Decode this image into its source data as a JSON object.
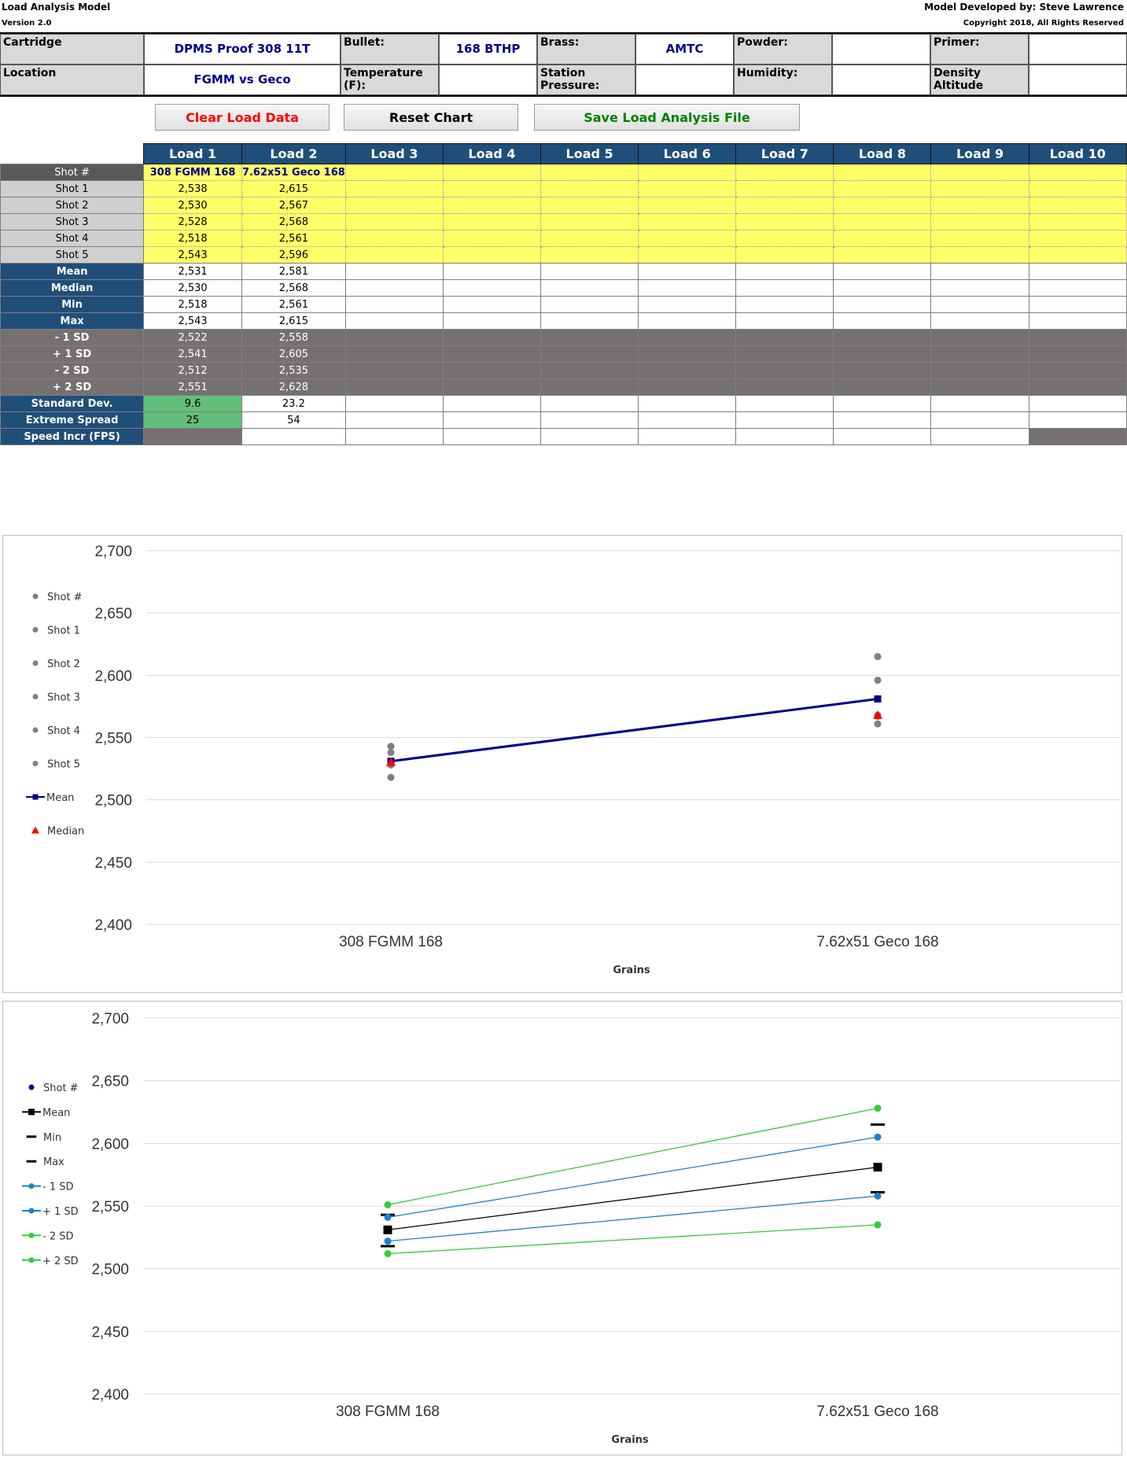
{
  "header": {
    "title": "Load Analysis Model",
    "version": "Version 2.0",
    "developer": "Model Developed by: Steve Lawrence",
    "copyright": "Copyright 2018, All Rights Reserved"
  },
  "info": {
    "cartridge_label": "Cartridge",
    "cartridge_value": "DPMS Proof 308 11T",
    "bullet_label": "Bullet:",
    "bullet_value": "168 BTHP",
    "brass_label": "Brass:",
    "brass_value": "AMTC",
    "powder_label": "Powder:",
    "powder_value": "",
    "primer_label": "Primer:",
    "primer_value": "",
    "location_label": "Location",
    "location_value": "FGMM vs Geco",
    "temperature_label": "Temperature (F):",
    "temperature_value": "",
    "station_label": "Station Pressure:",
    "station_value": "",
    "humidity_label": "Humidity:",
    "humidity_value": "",
    "density_label": "Density Altitude",
    "density_value": ""
  },
  "buttons": {
    "clear": "Clear Load Data",
    "reset": "Reset Chart",
    "save": "Save Load Analysis File",
    "clear_color": "#ff0000",
    "reset_color": "#000000",
    "save_color": "#008000"
  },
  "table": {
    "loads": [
      "Load 1",
      "Load 2",
      "Load 3",
      "Load 4",
      "Load 5",
      "Load 6",
      "Load 7",
      "Load 8",
      "Load 9",
      "Load 10"
    ],
    "shot_hdr_label": "Shot #",
    "load_names": [
      "308 FGMM 168",
      "7.62x51 Geco 168",
      "",
      "",
      "",
      "",
      "",
      "",
      "",
      ""
    ],
    "shots": [
      {
        "label": "Shot 1",
        "values": [
          "2,538",
          "2,615",
          "",
          "",
          "",
          "",
          "",
          "",
          "",
          ""
        ]
      },
      {
        "label": "Shot 2",
        "values": [
          "2,530",
          "2,567",
          "",
          "",
          "",
          "",
          "",
          "",
          "",
          ""
        ]
      },
      {
        "label": "Shot 3",
        "values": [
          "2,528",
          "2,568",
          "",
          "",
          "",
          "",
          "",
          "",
          "",
          ""
        ]
      },
      {
        "label": "Shot 4",
        "values": [
          "2,518",
          "2,561",
          "",
          "",
          "",
          "",
          "",
          "",
          "",
          ""
        ]
      },
      {
        "label": "Shot 5",
        "values": [
          "2,543",
          "2,596",
          "",
          "",
          "",
          "",
          "",
          "",
          "",
          ""
        ]
      }
    ],
    "stats": [
      {
        "label": "Mean",
        "values": [
          "2,531",
          "2,581",
          "",
          "",
          "",
          "",
          "",
          "",
          "",
          ""
        ]
      },
      {
        "label": "Median",
        "values": [
          "2,530",
          "2,568",
          "",
          "",
          "",
          "",
          "",
          "",
          "",
          ""
        ]
      },
      {
        "label": "Min",
        "values": [
          "2,518",
          "2,561",
          "",
          "",
          "",
          "",
          "",
          "",
          "",
          ""
        ]
      },
      {
        "label": "Max",
        "values": [
          "2,543",
          "2,615",
          "",
          "",
          "",
          "",
          "",
          "",
          "",
          ""
        ]
      }
    ],
    "sd_rows": [
      {
        "label": "- 1 SD",
        "values": [
          "2,522",
          "2,558",
          "",
          "",
          "",
          "",
          "",
          "",
          "",
          ""
        ]
      },
      {
        "label": "+ 1 SD",
        "values": [
          "2,541",
          "2,605",
          "",
          "",
          "",
          "",
          "",
          "",
          "",
          ""
        ]
      },
      {
        "label": "- 2 SD",
        "values": [
          "2,512",
          "2,535",
          "",
          "",
          "",
          "",
          "",
          "",
          "",
          ""
        ]
      },
      {
        "label": "+ 2 SD",
        "values": [
          "2,551",
          "2,628",
          "",
          "",
          "",
          "",
          "",
          "",
          "",
          ""
        ]
      }
    ],
    "std_dev": {
      "label": "Standard Dev.",
      "values": [
        "9.6",
        "23.2",
        "",
        "",
        "",
        "",
        "",
        "",
        "",
        ""
      ]
    },
    "extreme_spread": {
      "label": "Extreme Spread",
      "values": [
        "25",
        "54",
        "",
        "",
        "",
        "",
        "",
        "",
        "",
        ""
      ]
    },
    "speed_incr": {
      "label": "Speed Incr (FPS)",
      "values": [
        "",
        "",
        "",
        "",
        "",
        "",
        "",
        "",
        "",
        ""
      ]
    }
  },
  "chart_data": [
    {
      "type": "scatter",
      "categories": [
        "308 FGMM 168",
        "7.62x51 Geco 168"
      ],
      "xlabel": "Grains",
      "ylim": [
        2400,
        2700
      ],
      "yticks": [
        "2,400",
        "2,450",
        "2,500",
        "2,550",
        "2,600",
        "2,650",
        "2,700"
      ],
      "legend_position": "left",
      "series": [
        {
          "name": "Shot #",
          "values": [
            null,
            null
          ],
          "color": "#808080",
          "marker": "circle"
        },
        {
          "name": "Shot 1",
          "values": [
            2538,
            2615
          ],
          "color": "#808080",
          "marker": "circle"
        },
        {
          "name": "Shot 2",
          "values": [
            2530,
            2567
          ],
          "color": "#808080",
          "marker": "circle"
        },
        {
          "name": "Shot 3",
          "values": [
            2528,
            2568
          ],
          "color": "#808080",
          "marker": "circle"
        },
        {
          "name": "Shot 4",
          "values": [
            2518,
            2561
          ],
          "color": "#808080",
          "marker": "circle"
        },
        {
          "name": "Shot 5",
          "values": [
            2543,
            2596
          ],
          "color": "#808080",
          "marker": "circle"
        },
        {
          "name": "Mean",
          "values": [
            2531,
            2581
          ],
          "color": "#00008b",
          "marker": "square",
          "line": true
        },
        {
          "name": "Median",
          "values": [
            2530,
            2568
          ],
          "color": "#ff0000",
          "marker": "triangle"
        }
      ]
    },
    {
      "type": "line",
      "categories": [
        "308 FGMM 168",
        "7.62x51 Geco 168"
      ],
      "xlabel": "Grains",
      "ylim": [
        2400,
        2700
      ],
      "yticks": [
        "2,400",
        "2,450",
        "2,500",
        "2,550",
        "2,600",
        "2,650",
        "2,700"
      ],
      "legend_position": "left",
      "series": [
        {
          "name": "Shot #",
          "values": [
            null,
            null
          ],
          "color": "#00008b",
          "marker": "circle"
        },
        {
          "name": "Mean",
          "values": [
            2531,
            2581
          ],
          "color": "#000000",
          "marker": "square",
          "line": true
        },
        {
          "name": "Min",
          "values": [
            2518,
            2561
          ],
          "color": "#000000",
          "marker": "dash"
        },
        {
          "name": "Max",
          "values": [
            2543,
            2615
          ],
          "color": "#000000",
          "marker": "dash"
        },
        {
          "name": "- 1 SD",
          "values": [
            2522,
            2558
          ],
          "color": "#1f7ecf",
          "marker": "circle",
          "line": true
        },
        {
          "name": "+ 1 SD",
          "values": [
            2541,
            2605
          ],
          "color": "#1f7ecf",
          "marker": "circle",
          "line": true
        },
        {
          "name": "- 2 SD",
          "values": [
            2512,
            2535
          ],
          "color": "#33cc33",
          "marker": "circle",
          "line": true
        },
        {
          "name": "+ 2 SD",
          "values": [
            2551,
            2628
          ],
          "color": "#33cc33",
          "marker": "circle",
          "line": true
        }
      ]
    }
  ]
}
